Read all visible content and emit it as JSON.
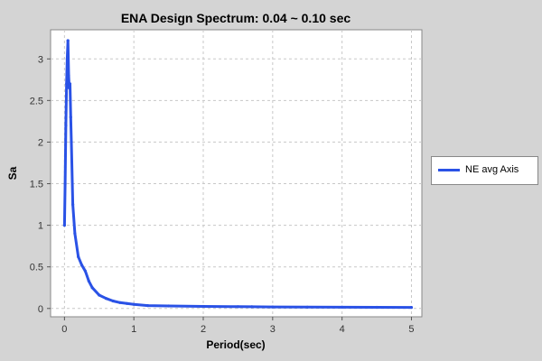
{
  "chart_data": {
    "type": "line",
    "title": "ENA Design Spectrum: 0.04 ~ 0.10 sec",
    "xlabel": "Period(sec)",
    "ylabel": "Sa",
    "xlim": [
      -0.2,
      5.15
    ],
    "ylim": [
      -0.1,
      3.35
    ],
    "xticks": [
      "0",
      "1",
      "2",
      "3",
      "4",
      "5"
    ],
    "yticks": [
      "0",
      "0.5",
      "1",
      "1.5",
      "2",
      "2.5",
      "3"
    ],
    "grid": true,
    "legend_position": "right",
    "series": [
      {
        "name": "NE avg Axis",
        "color": "#2a52e6",
        "x": [
          0.0,
          0.01,
          0.02,
          0.03,
          0.04,
          0.05,
          0.06,
          0.07,
          0.08,
          0.09,
          0.1,
          0.12,
          0.15,
          0.2,
          0.25,
          0.3,
          0.35,
          0.4,
          0.5,
          0.6,
          0.7,
          0.8,
          0.9,
          1.0,
          1.2,
          1.5,
          2.0,
          2.5,
          2.7,
          3.0,
          3.5,
          4.0,
          4.5,
          5.0
        ],
        "y": [
          1.0,
          1.5,
          2.2,
          2.7,
          3.0,
          3.22,
          2.8,
          2.65,
          2.7,
          2.3,
          2.0,
          1.25,
          0.9,
          0.62,
          0.52,
          0.45,
          0.33,
          0.25,
          0.16,
          0.12,
          0.09,
          0.07,
          0.06,
          0.05,
          0.035,
          0.03,
          0.025,
          0.022,
          0.02,
          0.018,
          0.016,
          0.015,
          0.014,
          0.013
        ]
      }
    ]
  }
}
